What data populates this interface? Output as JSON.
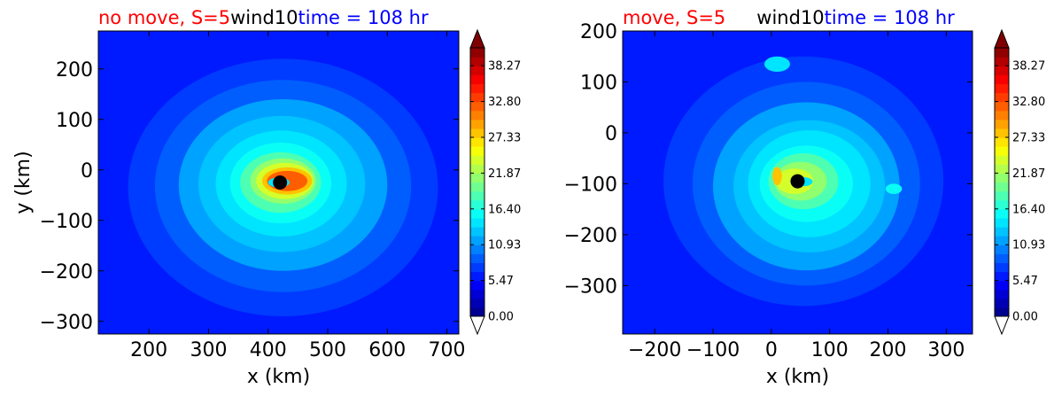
{
  "chart_data": [
    {
      "type": "heatmap",
      "variable": "wind10",
      "title_parts": [
        {
          "text": "no move, S=5",
          "color": "#ff0000"
        },
        {
          "text": "wind10",
          "color": "#000000"
        },
        {
          "text": "time = 108 hr",
          "color": "#0000ff"
        }
      ],
      "xlabel": "x (km)",
      "ylabel": "y (km)",
      "xlim": [
        115,
        720
      ],
      "ylim": [
        -325,
        275
      ],
      "xticks": [
        200,
        300,
        400,
        500,
        600,
        700
      ],
      "yticks": [
        200,
        100,
        0,
        -100,
        -200,
        -300
      ],
      "xtick_labels": [
        "200",
        "300",
        "400",
        "500",
        "600",
        "700"
      ],
      "ytick_labels": [
        "200",
        "100",
        "0",
        "−100",
        "−200",
        "−300"
      ],
      "center": {
        "x": 420,
        "y": -25
      },
      "background_value": 6.5,
      "rings": [
        {
          "value": 8.0,
          "rx": 260,
          "ry": 255,
          "cx": 425,
          "cy": -35
        },
        {
          "value": 9.5,
          "rx": 215,
          "ry": 210,
          "cx": 425,
          "cy": -32
        },
        {
          "value": 11.0,
          "rx": 175,
          "ry": 170,
          "cx": 425,
          "cy": -30
        },
        {
          "value": 12.5,
          "rx": 140,
          "ry": 135,
          "cx": 423,
          "cy": -28
        },
        {
          "value": 14.0,
          "rx": 110,
          "ry": 105,
          "cx": 422,
          "cy": -27
        },
        {
          "value": 16.0,
          "rx": 85,
          "ry": 80,
          "cx": 421,
          "cy": -26
        },
        {
          "value": 18.5,
          "rx": 68,
          "ry": 60,
          "cx": 421,
          "cy": -25
        },
        {
          "value": 21.0,
          "rx": 55,
          "ry": 45,
          "cx": 425,
          "cy": -22
        },
        {
          "value": 24.5,
          "rx": 48,
          "ry": 36,
          "cx": 428,
          "cy": -22
        },
        {
          "value": 28.0,
          "rx": 42,
          "ry": 27,
          "cx": 432,
          "cy": -22
        },
        {
          "value": 31.5,
          "rx": 34,
          "ry": 20,
          "cx": 432,
          "cy": -22
        },
        {
          "value": 15.0,
          "rx": 18,
          "ry": 10,
          "cx": 418,
          "cy": -25
        }
      ]
    },
    {
      "type": "heatmap",
      "variable": "wind10",
      "title_parts": [
        {
          "text": "move, S=5",
          "color": "#ff0000"
        },
        {
          "text": "wind10",
          "color": "#000000"
        },
        {
          "text": "time = 108 hr",
          "color": "#0000ff"
        }
      ],
      "xlabel": "x (km)",
      "ylabel": "",
      "xlim": [
        -255,
        345
      ],
      "ylim": [
        -395,
        200
      ],
      "xticks": [
        -200,
        -100,
        0,
        100,
        200,
        300
      ],
      "yticks": [
        200,
        100,
        0,
        -100,
        -200,
        -300
      ],
      "xtick_labels": [
        "−200",
        "−100",
        "0",
        "100",
        "200",
        "300"
      ],
      "ytick_labels": [
        "200",
        "100",
        "0",
        "−100",
        "−200",
        "−300"
      ],
      "center": {
        "x": 45,
        "y": -95
      },
      "background_value": 6.5,
      "rings": [
        {
          "value": 8.0,
          "rx": 240,
          "ry": 245,
          "cx": 55,
          "cy": -95
        },
        {
          "value": 9.5,
          "rx": 195,
          "ry": 200,
          "cx": 60,
          "cy": -100
        },
        {
          "value": 11.0,
          "rx": 160,
          "ry": 165,
          "cx": 60,
          "cy": -105
        },
        {
          "value": 12.5,
          "rx": 130,
          "ry": 130,
          "cx": 65,
          "cy": -105
        },
        {
          "value": 14.0,
          "rx": 105,
          "ry": 105,
          "cx": 65,
          "cy": -100
        },
        {
          "value": 16.0,
          "rx": 80,
          "ry": 75,
          "cx": 60,
          "cy": -100
        },
        {
          "value": 18.5,
          "rx": 60,
          "ry": 55,
          "cx": 55,
          "cy": -95
        },
        {
          "value": 21.0,
          "rx": 45,
          "ry": 38,
          "cx": 50,
          "cy": -95
        },
        {
          "value": 24.5,
          "rx": 32,
          "ry": 25,
          "cx": 40,
          "cy": -95
        },
        {
          "value": 28.0,
          "rx": 8,
          "ry": 18,
          "cx": 10,
          "cy": -85
        },
        {
          "value": 14.0,
          "rx": 16,
          "ry": 9,
          "cx": 55,
          "cy": -96
        },
        {
          "value": 16.0,
          "rx": 14,
          "ry": 10,
          "cx": 210,
          "cy": -110
        },
        {
          "value": 14.0,
          "rx": 22,
          "ry": 15,
          "cx": 10,
          "cy": 135
        }
      ]
    }
  ],
  "colorbar": {
    "vmin": 0,
    "vmax": 41,
    "levels": 30,
    "tick_values": [
      0.0,
      5.47,
      10.93,
      16.4,
      21.87,
      27.33,
      32.8,
      38.27
    ],
    "tick_labels": [
      "0.00",
      "5.47",
      "10.93",
      "16.40",
      "21.87",
      "27.33",
      "32.80",
      "38.27"
    ],
    "extend": "both",
    "colormap": "jet"
  },
  "colors": {
    "marker": "#000000",
    "under": "#ffffff",
    "over": "#7f0000"
  }
}
